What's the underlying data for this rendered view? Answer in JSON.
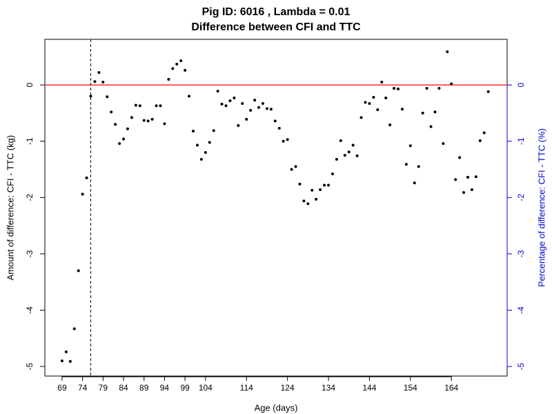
{
  "chart_data": {
    "type": "scatter",
    "title": "Pig ID: 6016 , Lambda = 0.01",
    "subtitle": "Difference between CFI and TTC",
    "x_label": "Age (days)",
    "y_label": "Amount of difference: CFI - TTC (kg)",
    "y2_label": "Percentage of difference: CFI - TTC (%)",
    "x": [
      69,
      70,
      71,
      72,
      73,
      74,
      75,
      76,
      77,
      78,
      79,
      80,
      81,
      82,
      83,
      84,
      85,
      86,
      87,
      88,
      89,
      90,
      91,
      92,
      93,
      94,
      95,
      96,
      97,
      98,
      99,
      100,
      101,
      102,
      103,
      104,
      105,
      106,
      107,
      108,
      109,
      110,
      111,
      112,
      113,
      114,
      115,
      116,
      117,
      118,
      119,
      120,
      121,
      122,
      123,
      124,
      125,
      126,
      127,
      128,
      129,
      130,
      131,
      132,
      133,
      134,
      135,
      136,
      137,
      138,
      139,
      140,
      141,
      142,
      143,
      144,
      145,
      146,
      147,
      148,
      149,
      150,
      151,
      152,
      153,
      154,
      155,
      156,
      157,
      158,
      159,
      160,
      161,
      162,
      163,
      164,
      165,
      166,
      167,
      168,
      169,
      170,
      171,
      172,
      173
    ],
    "series": [
      {
        "color": "#000000",
        "values": [
          -4.9,
          -4.74,
          -4.91,
          -4.33,
          -3.3,
          -1.94,
          -1.65,
          -0.2,
          0.06,
          0.22,
          0.05,
          -0.21,
          -0.48,
          -0.7,
          -1.04,
          -0.96,
          -0.78,
          -0.58,
          -0.36,
          -0.37,
          -0.63,
          -0.64,
          -0.61,
          -0.37,
          -0.37,
          -0.69,
          0.1,
          0.29,
          0.37,
          0.43,
          0.26,
          -0.2,
          -0.82,
          -1.07,
          -1.32,
          -1.2,
          -1.02,
          -0.81,
          -0.11,
          -0.34,
          -0.37,
          -0.28,
          -0.23,
          -0.72,
          -0.33,
          -0.61,
          -0.45,
          -0.27,
          -0.4,
          -0.33,
          -0.42,
          -0.43,
          -0.64,
          -0.77,
          -1.0,
          -0.97,
          -1.5,
          -1.45,
          -1.76,
          -2.06,
          -2.11,
          -1.87,
          -2.03,
          -1.86,
          -1.78,
          -1.78,
          -1.58,
          -1.32,
          -0.99,
          -1.25,
          -1.19,
          -1.07,
          -1.26,
          -0.58,
          -0.31,
          -0.33,
          -0.22,
          -0.44,
          0.05,
          -0.23,
          -0.71,
          -0.06,
          -0.07,
          -0.43,
          -1.41,
          -1.08,
          -1.74,
          -1.45,
          -0.5,
          -0.06,
          -0.74,
          -0.48,
          -0.06,
          -1.04,
          0.59,
          0.02,
          -1.68,
          -1.29,
          -1.91,
          -1.64,
          -1.86,
          -1.63,
          -0.99,
          -0.85,
          -0.12
        ]
      }
    ],
    "xlim": [
      64.8,
      177.6
    ],
    "xticks": [
      69,
      74,
      79,
      84,
      89,
      94,
      99,
      104,
      114,
      124,
      134,
      144,
      154,
      164
    ],
    "ylim": [
      -5.17,
      0.81
    ],
    "yticks": [
      0,
      -1,
      -2,
      -3,
      -4,
      -5
    ],
    "y2lim": [
      -5.17,
      0.81
    ],
    "y2ticks": [
      0,
      -1,
      -2,
      -3,
      -4,
      -5
    ],
    "y2_color": "#0000cc",
    "hline": 0,
    "hline_color": "#ff0000",
    "vline": 76
  }
}
